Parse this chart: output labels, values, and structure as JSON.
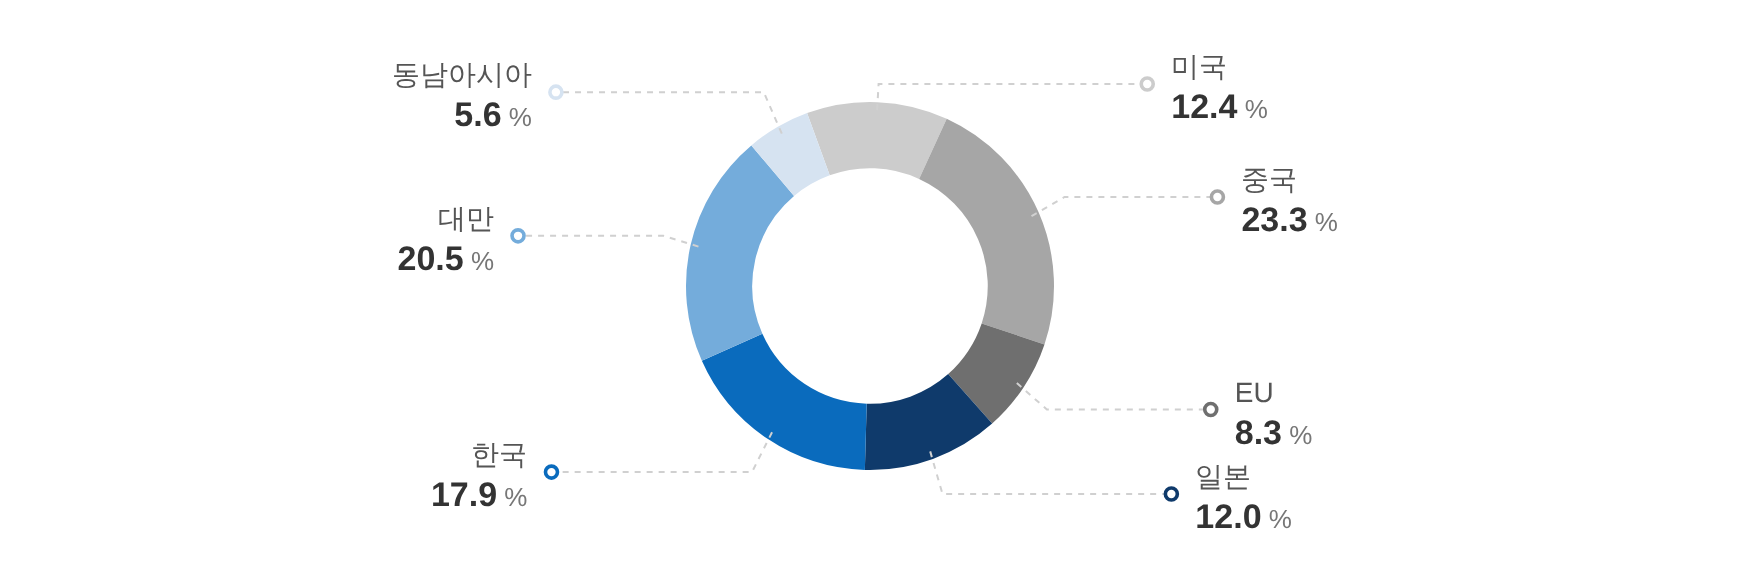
{
  "chart_data": {
    "type": "donut",
    "categories": [
      "미국",
      "중국",
      "EU",
      "일본",
      "한국",
      "대만",
      "동남아시아"
    ],
    "values": [
      12.4,
      23.3,
      8.3,
      12.0,
      17.9,
      20.5,
      5.6
    ],
    "colors": [
      "#cccccc",
      "#a6a6a6",
      "#6f6f6f",
      "#0f3a6b",
      "#0a6bbd",
      "#74acdb",
      "#d6e3f1"
    ],
    "value_labels": [
      "12.4 %",
      "23.3 %",
      "8.3 %",
      "12.0 %",
      "17.9 %",
      "20.5 %",
      "5.6 %"
    ],
    "legend": "right"
  }
}
